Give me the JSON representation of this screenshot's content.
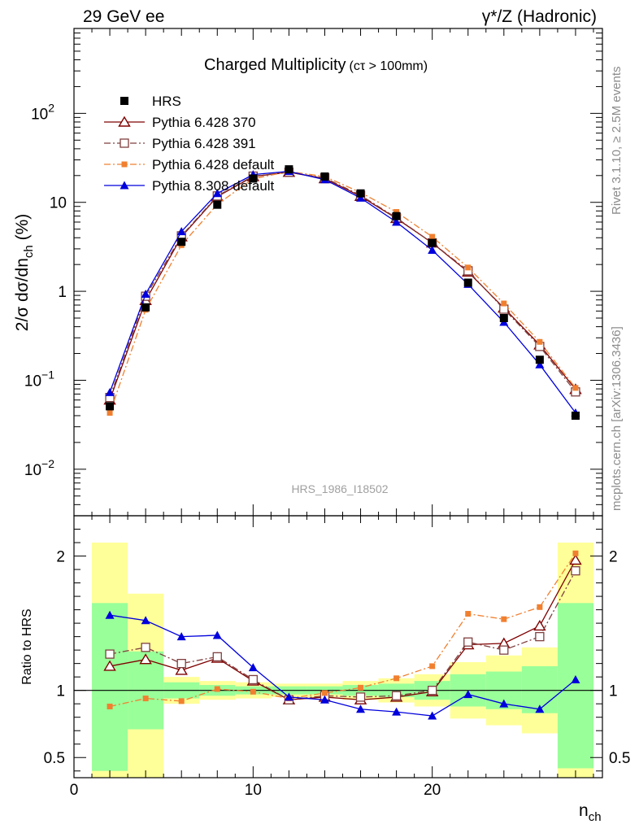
{
  "header": {
    "left": "29 GeV ee",
    "right": "γ*/Z (Hadronic)"
  },
  "side_text": {
    "top": "Rivet 3.1.10, ≥ 2.5M events",
    "bottom": "mcplots.cern.ch [arXiv:1306.3436]"
  },
  "chart_data": [
    {
      "type": "line",
      "title": "Charged Multiplicity",
      "subtitle": "(cτ > 100mm)",
      "watermark": "HRS_1986_I18502",
      "ylabel": "2/σ dσ/dn_ch (%)",
      "yscale": "log",
      "xlim": [
        0,
        29.5
      ],
      "ylim": [
        0.003,
        900
      ],
      "y_ticks": [
        {
          "v": 0.01,
          "base": "10",
          "exp": "−2"
        },
        {
          "v": 0.1,
          "base": "10",
          "exp": "−1"
        },
        {
          "v": 1,
          "base": "1",
          "exp": ""
        },
        {
          "v": 10,
          "base": "10",
          "exp": ""
        },
        {
          "v": 100,
          "base": "10",
          "exp": "2"
        }
      ],
      "legend_position": "top-left",
      "x": [
        2,
        4,
        6,
        8,
        10,
        12,
        14,
        16,
        18,
        20,
        22,
        24,
        26,
        28
      ],
      "data": {
        "name": "HRS",
        "color": "#000000",
        "values": [
          0.051,
          0.66,
          3.6,
          9.4,
          18.5,
          23.5,
          19.5,
          12.6,
          7.0,
          3.5,
          1.25,
          0.5,
          0.17,
          0.04
        ]
      },
      "series": [
        {
          "name": "Pythia 6.428 370",
          "color": "#7f0000",
          "marker": "open-triangle",
          "dash": "solid",
          "values": [
            0.06,
            0.79,
            4.1,
            11.6,
            19.5,
            21.8,
            18.5,
            11.7,
            6.6,
            3.5,
            1.65,
            0.65,
            0.25,
            0.079
          ]
        },
        {
          "name": "Pythia 6.428 391",
          "color": "#7f3f3f",
          "marker": "open-square",
          "dash": "dashdot",
          "values": [
            0.064,
            0.88,
            4.2,
            11.8,
            19.7,
            21.8,
            18.8,
            12.0,
            6.7,
            3.5,
            1.7,
            0.63,
            0.24,
            0.074
          ]
        },
        {
          "name": "Pythia 6.428 default",
          "color": "#f08030",
          "marker": "filled-small-square",
          "dash": "dashdot",
          "values": [
            0.043,
            0.62,
            3.3,
            9.5,
            18.4,
            22.2,
            19.5,
            12.9,
            7.8,
            4.1,
            1.85,
            0.73,
            0.27,
            0.082
          ]
        },
        {
          "name": "Pythia 8.308 default",
          "color": "#0000dd",
          "marker": "filled-triangle",
          "dash": "solid",
          "values": [
            0.073,
            0.93,
            4.7,
            12.6,
            20.5,
            22.3,
            18.0,
            11.2,
            6.0,
            2.9,
            1.2,
            0.45,
            0.15,
            0.043
          ]
        }
      ]
    },
    {
      "type": "line",
      "xlabel": "n_ch",
      "ylabel": "Ratio to HRS",
      "xlim": [
        0,
        29.5
      ],
      "ylim": [
        0.35,
        2.3
      ],
      "x_ticks": [
        0,
        10,
        20
      ],
      "y_ticks": [
        {
          "v": 0.5,
          "label": "0.5"
        },
        {
          "v": 1,
          "label": "1"
        },
        {
          "v": 2,
          "label": "2"
        }
      ],
      "bands": [
        {
          "x": [
            1,
            3
          ],
          "stat": [
            0.4,
            1.65
          ],
          "total": [
            0.35,
            2.1
          ]
        },
        {
          "x": [
            3,
            5
          ],
          "stat": [
            0.71,
            1.29
          ],
          "total": [
            0.35,
            1.72
          ]
        },
        {
          "x": [
            5,
            7
          ],
          "stat": [
            0.94,
            1.06
          ],
          "total": [
            0.9,
            1.1
          ]
        },
        {
          "x": [
            7,
            9
          ],
          "stat": [
            0.96,
            1.04
          ],
          "total": [
            0.93,
            1.07
          ]
        },
        {
          "x": [
            9,
            11
          ],
          "stat": [
            0.97,
            1.03
          ],
          "total": [
            0.94,
            1.06
          ]
        },
        {
          "x": [
            11,
            13
          ],
          "stat": [
            0.97,
            1.03
          ],
          "total": [
            0.95,
            1.05
          ]
        },
        {
          "x": [
            13,
            15
          ],
          "stat": [
            0.97,
            1.03
          ],
          "total": [
            0.95,
            1.05
          ]
        },
        {
          "x": [
            15,
            17
          ],
          "stat": [
            0.96,
            1.04
          ],
          "total": [
            0.93,
            1.07
          ]
        },
        {
          "x": [
            17,
            19
          ],
          "stat": [
            0.95,
            1.05
          ],
          "total": [
            0.91,
            1.09
          ]
        },
        {
          "x": [
            19,
            21
          ],
          "stat": [
            0.93,
            1.07
          ],
          "total": [
            0.88,
            1.12
          ]
        },
        {
          "x": [
            21,
            23
          ],
          "stat": [
            0.88,
            1.12
          ],
          "total": [
            0.79,
            1.21
          ]
        },
        {
          "x": [
            23,
            25
          ],
          "stat": [
            0.86,
            1.14
          ],
          "total": [
            0.74,
            1.26
          ]
        },
        {
          "x": [
            25,
            27
          ],
          "stat": [
            0.83,
            1.18
          ],
          "total": [
            0.68,
            1.32
          ]
        },
        {
          "x": [
            27,
            29
          ],
          "stat": [
            0.42,
            1.65
          ],
          "total": [
            0.35,
            2.1
          ]
        }
      ],
      "series": [
        {
          "name": "Pythia 6.428 370",
          "color": "#7f0000",
          "marker": "open-triangle",
          "dash": "solid",
          "values": [
            1.18,
            1.23,
            1.15,
            1.24,
            1.07,
            0.93,
            0.95,
            0.93,
            0.95,
            0.99,
            1.34,
            1.35,
            1.48,
            1.97
          ]
        },
        {
          "name": "Pythia 6.428 391",
          "color": "#7f3f3f",
          "marker": "open-square",
          "dash": "dashdot",
          "values": [
            1.27,
            1.32,
            1.2,
            1.25,
            1.08,
            0.93,
            0.96,
            0.95,
            0.96,
            1.0,
            1.36,
            1.3,
            1.4,
            1.89
          ]
        },
        {
          "name": "Pythia 6.428 default",
          "color": "#f08030",
          "marker": "filled-small-square",
          "dash": "dashdot",
          "values": [
            0.88,
            0.94,
            0.92,
            1.01,
            0.99,
            0.94,
            0.98,
            1.02,
            1.09,
            1.18,
            1.57,
            1.53,
            1.62,
            2.02
          ]
        },
        {
          "name": "Pythia 8.308 default",
          "color": "#0000dd",
          "marker": "filled-triangle",
          "dash": "solid",
          "values": [
            1.56,
            1.52,
            1.4,
            1.41,
            1.17,
            0.95,
            0.93,
            0.86,
            0.84,
            0.81,
            0.97,
            0.9,
            0.86,
            1.08
          ]
        }
      ]
    }
  ]
}
